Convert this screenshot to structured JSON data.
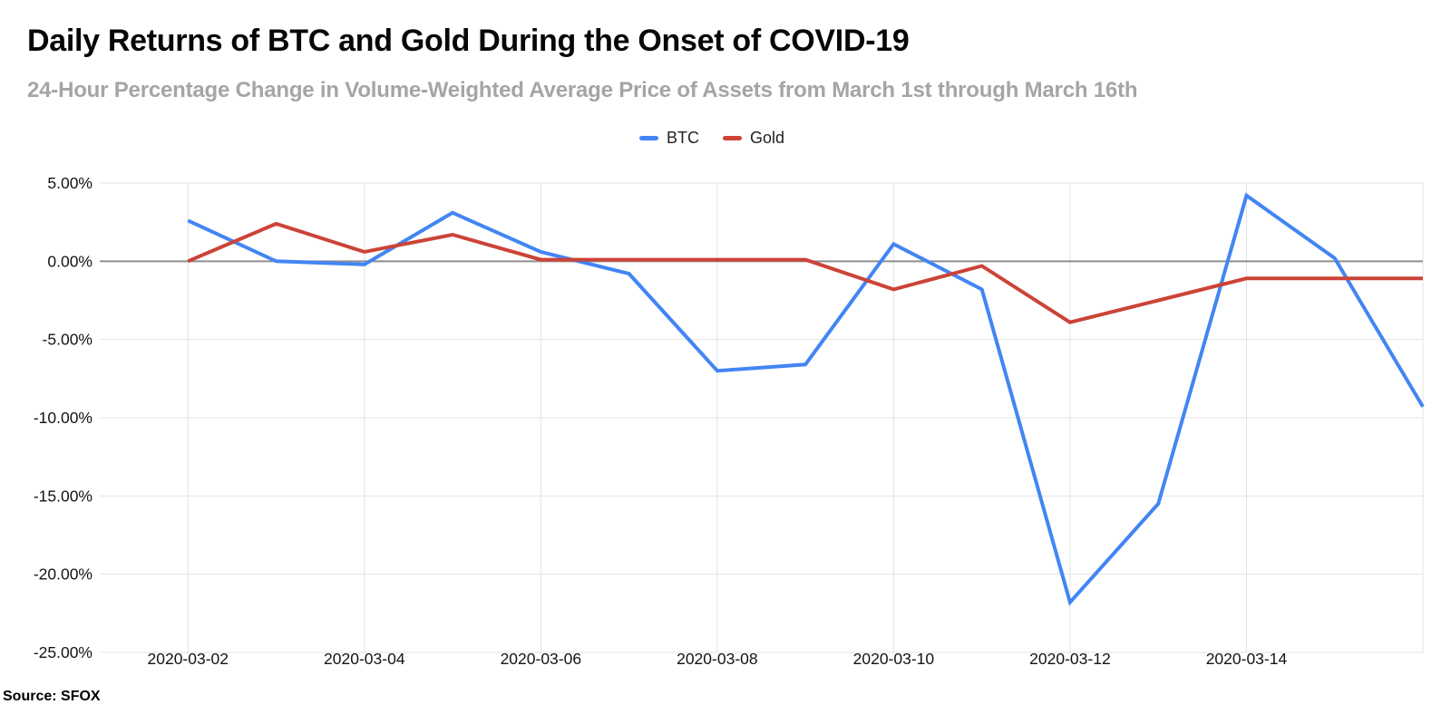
{
  "header": {
    "title": "Daily Returns of BTC and Gold During the Onset of COVID-19",
    "subtitle": "24-Hour Percentage Change in Volume-Weighted Average Price of Assets from March 1st through March 16th"
  },
  "legend": [
    {
      "label": "BTC",
      "color": "#4285F4"
    },
    {
      "label": "Gold",
      "color": "#CC4337"
    }
  ],
  "footer": {
    "source_label": "Source: SFOX"
  },
  "chart_data": {
    "type": "line",
    "title": "Daily Returns of BTC and Gold During the Onset of COVID-19",
    "subtitle": "24-Hour Percentage Change in Volume-Weighted Average Price of Assets from March 1st through March 16th",
    "x": [
      "2020-03-02",
      "2020-03-03",
      "2020-03-04",
      "2020-03-05",
      "2020-03-06",
      "2020-03-07",
      "2020-03-08",
      "2020-03-09",
      "2020-03-10",
      "2020-03-11",
      "2020-03-12",
      "2020-03-13",
      "2020-03-14",
      "2020-03-15",
      "2020-03-16"
    ],
    "series": [
      {
        "name": "BTC",
        "color": "#4285F4",
        "values": [
          2.6,
          0.0,
          -0.2,
          3.1,
          0.6,
          -0.8,
          -7.0,
          -6.6,
          1.1,
          -1.8,
          -21.8,
          -15.5,
          4.2,
          0.2,
          -9.3
        ]
      },
      {
        "name": "Gold",
        "color": "#CC4337",
        "values": [
          0.0,
          2.4,
          0.6,
          1.7,
          0.1,
          0.1,
          0.1,
          0.1,
          -1.8,
          -0.3,
          -3.9,
          -2.5,
          -1.1,
          -1.1,
          -1.1
        ]
      }
    ],
    "x_axis": {
      "range_start": "2020-03-01",
      "range_end": "2020-03-16",
      "tick_labels": [
        "2020-03-02",
        "2020-03-04",
        "2020-03-06",
        "2020-03-08",
        "2020-03-10",
        "2020-03-12",
        "2020-03-14"
      ],
      "gridline_days": [
        2,
        4,
        6,
        8,
        10,
        12,
        14,
        16
      ]
    },
    "y_axis": {
      "unit": "%",
      "min": -25,
      "max": 5,
      "ticks": [
        {
          "label": "5.00%",
          "value": 5
        },
        {
          "label": "0.00%",
          "value": 0
        },
        {
          "label": "-5.00%",
          "value": -5
        },
        {
          "label": "-10.00%",
          "value": -10
        },
        {
          "label": "-15.00%",
          "value": -15
        },
        {
          "label": "-20.00%",
          "value": -20
        },
        {
          "label": "-25.00%",
          "value": -25
        }
      ]
    },
    "grid": true,
    "legend_position": "top",
    "colors": {
      "gridline": "#e3e3e3",
      "zero_line": "#8f8f8f",
      "axis_text": "#141414"
    }
  }
}
